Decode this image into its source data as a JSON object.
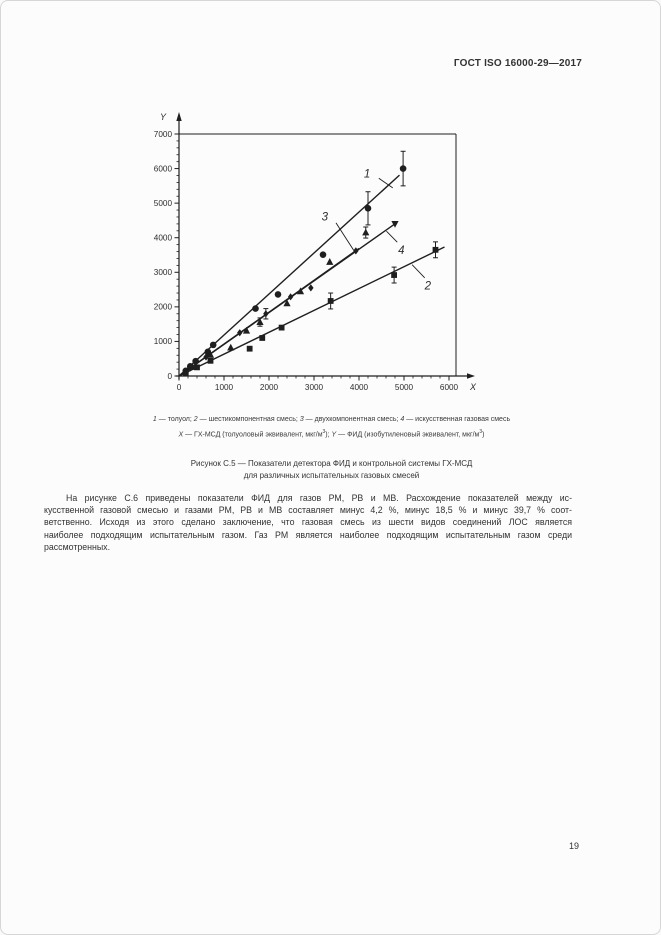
{
  "page": {
    "header": "ГОСТ ISO 16000-29—2017",
    "page_number": "19"
  },
  "figure": {
    "legend_line1": [
      {
        "t": "1",
        "s": "i"
      },
      {
        "t": " — толуол; "
      },
      {
        "t": "2",
        "s": "i"
      },
      {
        "t": " — шестикомпонентная смесь; "
      },
      {
        "t": "3",
        "s": "i"
      },
      {
        "t": " — двухкомпонентная смесь; "
      },
      {
        "t": "4",
        "s": "i"
      },
      {
        "t": " — искусственная газовая смесь"
      }
    ],
    "legend_line2": [
      {
        "t": "X",
        "s": "i"
      },
      {
        "t": " — ГХ-МСД (толуоловый эквивалент, мкг/м"
      },
      {
        "t": "3",
        "s": "sup"
      },
      {
        "t": "); "
      },
      {
        "t": "Y",
        "s": "i"
      },
      {
        "t": " — ФИД (изобутиленовый эквивалент, мкг/м"
      },
      {
        "t": "3",
        "s": "sup"
      },
      {
        "t": ")"
      }
    ],
    "caption_line1": "Рисунок С.5 — Показатели детектора ФИД и контрольной системы ГХ-МСД",
    "caption_line2": "для различных испытательных газовых смесей"
  },
  "paragraph": {
    "lines": [
      "На рисунке С.6 приведены показатели ФИД для газов РМ, РВ и МВ. Расхождение показателей между ис-",
      "кусственной газовой смесью и газами РМ, РВ и МВ составляет минус 4,2 %, минус 18,5 % и минус 39,7 % соот-",
      "ветственно. Исходя из этого сделано заключение, что газовая смесь из шести видов соединений ЛОС является",
      "наиболее подходящим испытательным газом. Газ РМ является наиболее подходящим испытательным газом среди",
      "рассмотренных."
    ]
  },
  "chart_data": {
    "type": "scatter",
    "title": "",
    "xlabel": "X",
    "ylabel": "Y",
    "xlim": [
      0,
      6000
    ],
    "ylim": [
      0,
      7000
    ],
    "x_ticks": [
      0,
      1000,
      2000,
      3000,
      4000,
      5000,
      6000
    ],
    "y_ticks": [
      0,
      1000,
      2000,
      3000,
      4000,
      5000,
      6000,
      7000
    ],
    "minor_tick_step": 200,
    "grid": false,
    "legend_position": "none",
    "line_color": "#1f1f1f",
    "series": [
      {
        "name": "толуол",
        "label": "1",
        "marker": "circle",
        "points": [
          [
            150,
            150
          ],
          [
            250,
            280
          ],
          [
            370,
            430
          ],
          [
            640,
            700
          ],
          [
            760,
            900
          ],
          [
            1700,
            1950
          ],
          [
            2200,
            2360
          ],
          [
            3200,
            3510
          ],
          [
            4200,
            4850,
            480
          ],
          [
            4980,
            6000,
            500
          ]
        ],
        "line_to": [
          4900,
          5810
        ],
        "label_pos": [
          4180,
          5850
        ],
        "leader": [
          [
            4440,
            5720
          ],
          [
            4750,
            5440
          ]
        ]
      },
      {
        "name": "шестикомпонентная смесь",
        "label": "2",
        "marker": "square",
        "points": [
          [
            150,
            90
          ],
          [
            400,
            250
          ],
          [
            700,
            440
          ],
          [
            1570,
            790
          ],
          [
            1850,
            1100
          ],
          [
            2280,
            1400
          ],
          [
            3370,
            2170,
            230
          ],
          [
            4780,
            2920,
            230
          ],
          [
            5700,
            3650,
            230
          ]
        ],
        "line_to": [
          5900,
          3730
        ],
        "label_pos": [
          5530,
          2600
        ],
        "leader": [
          [
            5460,
            2840
          ],
          [
            5180,
            3220
          ]
        ]
      },
      {
        "name": "двухкомпонентная смесь",
        "label": "3",
        "marker": "diamond",
        "points": [
          [
            250,
            230
          ],
          [
            600,
            550
          ],
          [
            1350,
            1250
          ],
          [
            1930,
            1800,
            150
          ],
          [
            2480,
            2290
          ],
          [
            2930,
            2550
          ],
          [
            3930,
            3620
          ]
        ],
        "line_to": [
          4000,
          3690
        ],
        "label_pos": [
          3240,
          4600
        ],
        "leader": [
          [
            3489,
            4430
          ],
          [
            3880,
            3640
          ]
        ]
      },
      {
        "name": "искусственная газовая смесь",
        "label": "4",
        "marker": "triangle-up",
        "points": [
          [
            300,
            260
          ],
          [
            700,
            610
          ],
          [
            1150,
            820
          ],
          [
            1500,
            1310
          ],
          [
            1800,
            1560,
            120
          ],
          [
            2400,
            2100
          ],
          [
            2700,
            2450
          ],
          [
            3350,
            3300
          ],
          [
            4150,
            4150,
            160
          ],
          [
            4800,
            4400,
            0,
            "down"
          ]
        ],
        "line_to": [
          4820,
          4420
        ],
        "label_pos": [
          4940,
          3630
        ],
        "leader": [
          [
            4850,
            3870
          ],
          [
            4610,
            4190
          ]
        ]
      }
    ]
  }
}
